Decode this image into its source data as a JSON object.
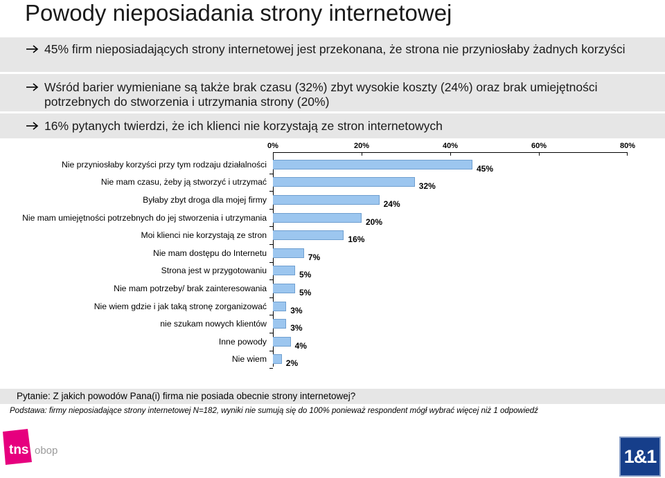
{
  "title": "Powody nieposiadania strony internetowej",
  "bullets": [
    "45% firm nieposiadających strony internetowej jest przekonana, że strona nie przyniosłaby żadnych korzyści",
    "Wśród barier wymieniane są także brak czasu (32%) zbyt wysokie koszty (24%) oraz brak umiejętności potrzebnych do stworzenia i utrzymania strony (20%)",
    "16% pytanych twierdzi, że ich klienci nie korzystają ze stron internetowych"
  ],
  "chart_data": {
    "type": "bar",
    "orientation": "horizontal",
    "categories": [
      "Nie przyniosłaby korzyści przy tym rodzaju działalności",
      "Nie mam czasu, żeby ją stworzyć i utrzymać",
      "Byłaby zbyt droga dla mojej firmy",
      "Nie mam umiejętności potrzebnych do jej stworzenia i utrzymania",
      "Moi klienci nie korzystają ze stron",
      "Nie mam dostępu do Internetu",
      "Strona jest w przygotowaniu",
      "Nie mam potrzeby/ brak zainteresowania",
      "Nie wiem gdzie i jak taką stronę zorganizować",
      "nie szukam nowych klientów",
      "Inne powody",
      "Nie wiem"
    ],
    "values": [
      45,
      32,
      24,
      20,
      16,
      7,
      5,
      5,
      3,
      3,
      4,
      2
    ],
    "value_labels": [
      "45%",
      "32%",
      "24%",
      "20%",
      "16%",
      "7%",
      "5%",
      "5%",
      "3%",
      "3%",
      "4%",
      "2%"
    ],
    "xlim": [
      0,
      80
    ],
    "x_ticks": [
      "0%",
      "20%",
      "40%",
      "60%",
      "80%"
    ],
    "x_tick_values": [
      0,
      20,
      40,
      60,
      80
    ],
    "bar_color": "#9cc6ef",
    "axis_position": "top",
    "grid": false
  },
  "question": "Pytanie: Z jakich powodów Pana(i) firma nie posiada obecnie strony internetowej?",
  "note": "Podstawa: firmy nieposiadające strony internetowej N=182, wyniki nie sumują się do 100% ponieważ respondent mógł wybrać więcej niż 1 odpowiedź",
  "logos": {
    "tns": "tns obop",
    "brand": "1&1"
  },
  "colors": {
    "panel": "#e6e6e6",
    "tns_magenta": "#e6007e",
    "brand_blue": "#163e8a"
  }
}
